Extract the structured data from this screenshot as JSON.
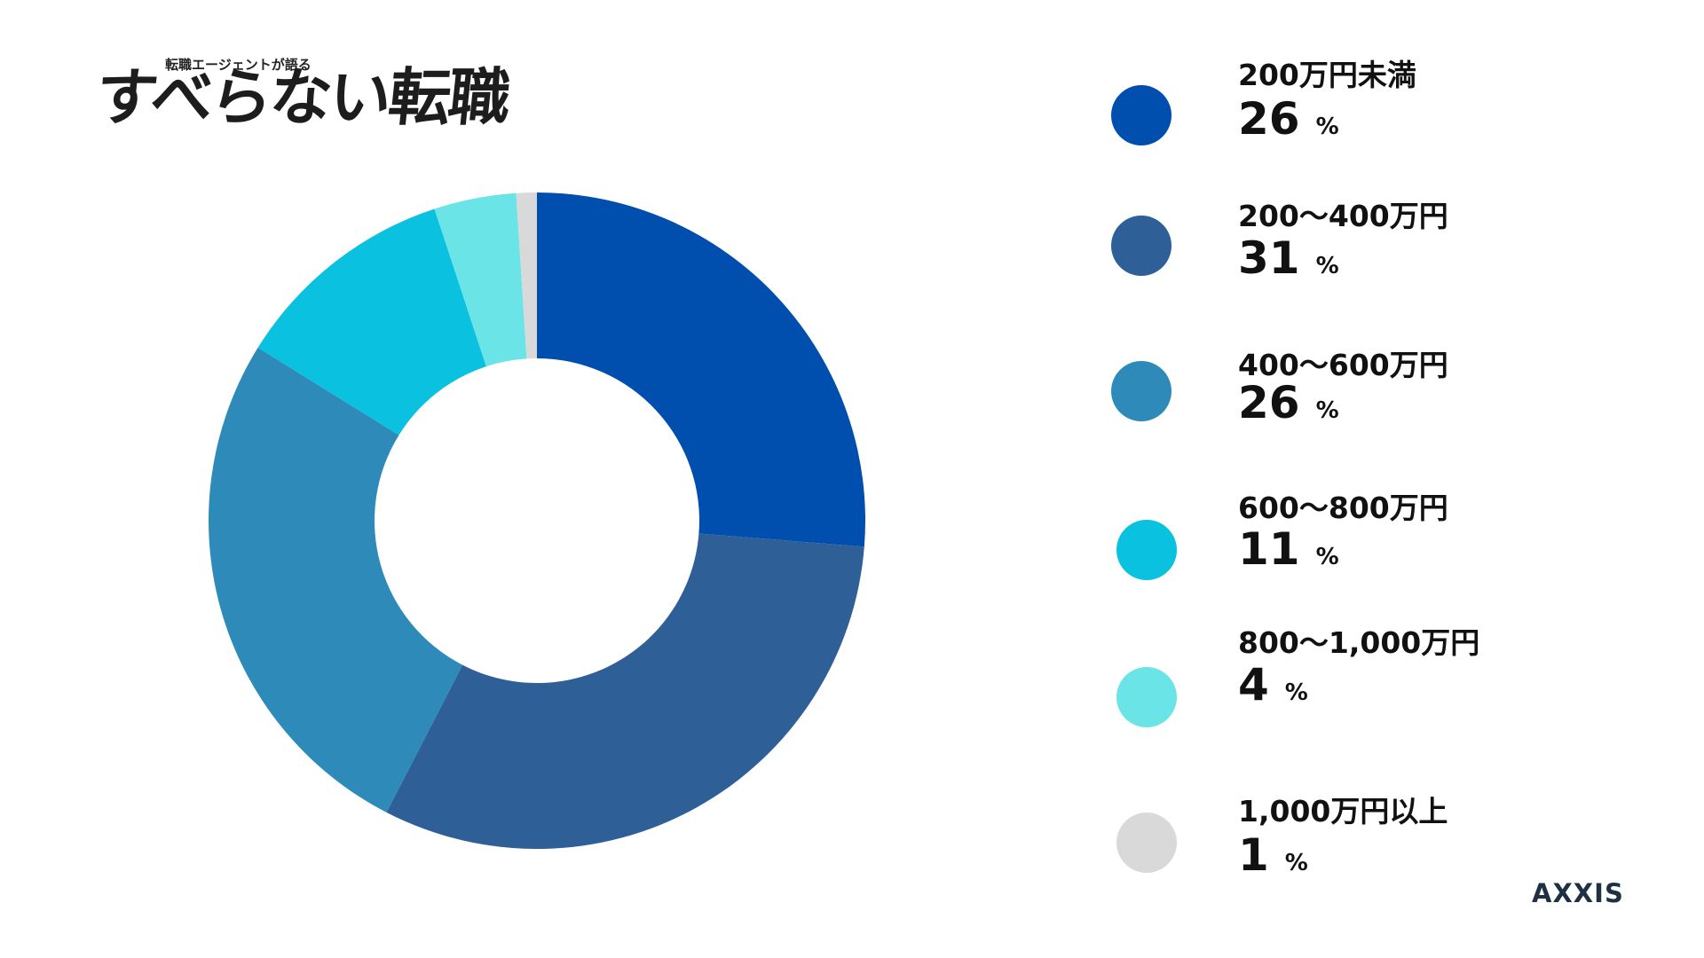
{
  "logo": {
    "sub_text": "転職エージェントが語る",
    "main_text": "すべらない転職"
  },
  "brand": {
    "name": "AXXIS"
  },
  "chart_data": {
    "type": "pie",
    "donut": true,
    "unit": "%",
    "legend_position": "right",
    "categories": [
      "200万円未満",
      "200〜400万円",
      "400〜600万円",
      "600〜800万円",
      "800〜1,000万円",
      "1,000万円以上"
    ],
    "values": [
      26,
      31,
      26,
      11,
      4,
      1
    ],
    "colors": [
      "#004ead",
      "#2e5f97",
      "#2e8bb9",
      "#0bc1e0",
      "#6be4e8",
      "#d9d9d9"
    ]
  }
}
